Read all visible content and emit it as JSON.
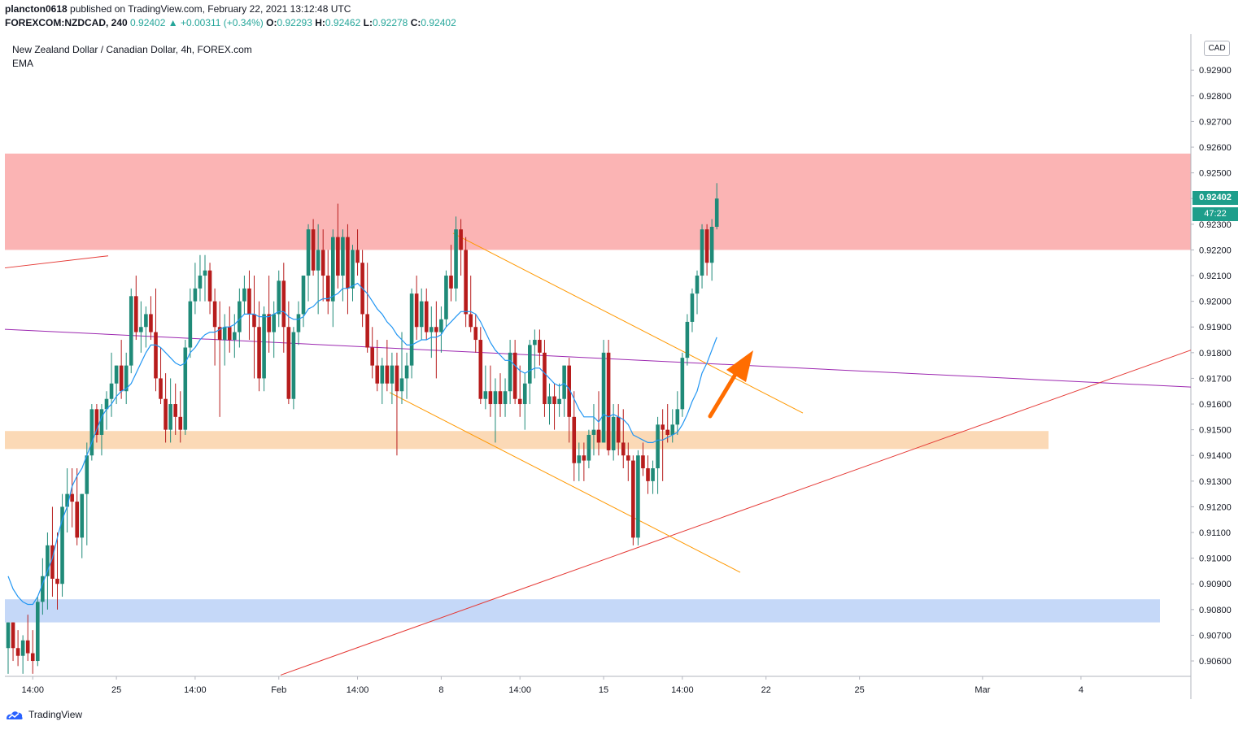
{
  "header": {
    "author": "plancton0618",
    "published_text": "published on TradingView.com, February 22, 2021 13:12:48 UTC",
    "symbol": "FOREXCOM:NZDCAD, 240",
    "change": "0.92402 ▲ +0.00311 (+0.34%)",
    "o_label": "O:",
    "o_value": "0.92293",
    "h_label": "H:",
    "h_value": "0.92462",
    "l_label": "L:",
    "l_value": "0.92278",
    "c_label": "C:",
    "c_value": "0.92402"
  },
  "legend": {
    "title": "New Zealand Dollar / Canadian Dollar, 4h, FOREX.com",
    "indicator": "EMA"
  },
  "currency_button": "CAD",
  "last_price": "0.92402",
  "countdown": "47:22",
  "footer": {
    "brand": "TradingView"
  },
  "colors": {
    "up": "#26a69a",
    "down": "#ef5350",
    "candle_up": "#1f8a78",
    "candle_down": "#b71c1c",
    "ema": "#2196f3",
    "resistance_zone": "#fbb4b4",
    "support_zone": "#fbd9b6",
    "lower_zone": "#c5d8f8",
    "channel": "#ff9800",
    "trend_red": "#e53935",
    "trend_purple": "#9c27b0",
    "arrow": "#ff6d00",
    "price_tag": "#1e9e8b"
  },
  "chart_data": {
    "type": "candlestick",
    "title": "New Zealand Dollar / Canadian Dollar, 4h, FOREX.com",
    "ylim": [
      0.9054,
      0.9304
    ],
    "y_ticks": [
      "0.92900",
      "0.92800",
      "0.92700",
      "0.92600",
      "0.92500",
      "0.92400",
      "0.92300",
      "0.92200",
      "0.92100",
      "0.92000",
      "0.91900",
      "0.91800",
      "0.91700",
      "0.91600",
      "0.91500",
      "0.91400",
      "0.91300",
      "0.91200",
      "0.91100",
      "0.91000",
      "0.90900",
      "0.90800",
      "0.90700",
      "0.90600"
    ],
    "x_ticks": [
      {
        "label": "14:00",
        "i": 5
      },
      {
        "label": "25",
        "i": 22
      },
      {
        "label": "14:00",
        "i": 38
      },
      {
        "label": "Feb",
        "i": 55
      },
      {
        "label": "14:00",
        "i": 71
      },
      {
        "label": "8",
        "i": 88
      },
      {
        "label": "14:00",
        "i": 104
      },
      {
        "label": "15",
        "i": 121
      },
      {
        "label": "14:00",
        "i": 137
      },
      {
        "label": "22",
        "i": 154
      },
      {
        "label": "25",
        "i": 173
      },
      {
        "label": "Mar",
        "i": 198
      },
      {
        "label": "4",
        "i": 218
      }
    ],
    "candles": [
      [
        0.9065,
        0.9075,
        0.9055,
        0.9075
      ],
      [
        0.9075,
        0.9075,
        0.906,
        0.9065
      ],
      [
        0.9065,
        0.9072,
        0.9058,
        0.9062
      ],
      [
        0.9062,
        0.907,
        0.9055,
        0.9068
      ],
      [
        0.9068,
        0.9078,
        0.906,
        0.9063
      ],
      [
        0.9063,
        0.9072,
        0.9055,
        0.906
      ],
      [
        0.906,
        0.9085,
        0.9058,
        0.9083
      ],
      [
        0.9083,
        0.91,
        0.9078,
        0.9093
      ],
      [
        0.9093,
        0.911,
        0.908,
        0.9105
      ],
      [
        0.9105,
        0.912,
        0.9085,
        0.9092
      ],
      [
        0.9092,
        0.911,
        0.908,
        0.909
      ],
      [
        0.909,
        0.9125,
        0.9085,
        0.912
      ],
      [
        0.912,
        0.9135,
        0.911,
        0.9125
      ],
      [
        0.9125,
        0.9135,
        0.9112,
        0.9122
      ],
      [
        0.9122,
        0.9135,
        0.9105,
        0.9108
      ],
      [
        0.9108,
        0.9125,
        0.91,
        0.9125
      ],
      [
        0.9125,
        0.9145,
        0.9105,
        0.914
      ],
      [
        0.914,
        0.916,
        0.9138,
        0.9158
      ],
      [
        0.9158,
        0.916,
        0.9145,
        0.9148
      ],
      [
        0.9148,
        0.916,
        0.914,
        0.9158
      ],
      [
        0.9158,
        0.9165,
        0.915,
        0.9162
      ],
      [
        0.9162,
        0.918,
        0.9155,
        0.9168
      ],
      [
        0.9168,
        0.9175,
        0.916,
        0.9175
      ],
      [
        0.9175,
        0.9185,
        0.9162,
        0.9165
      ],
      [
        0.9165,
        0.918,
        0.916,
        0.9175
      ],
      [
        0.9175,
        0.9205,
        0.9172,
        0.9202
      ],
      [
        0.9202,
        0.921,
        0.9185,
        0.9188
      ],
      [
        0.9188,
        0.92,
        0.918,
        0.919
      ],
      [
        0.919,
        0.9198,
        0.9182,
        0.9195
      ],
      [
        0.9195,
        0.9202,
        0.9185,
        0.9188
      ],
      [
        0.9188,
        0.9205,
        0.9165,
        0.917
      ],
      [
        0.917,
        0.9182,
        0.916,
        0.9162
      ],
      [
        0.9162,
        0.9172,
        0.9145,
        0.915
      ],
      [
        0.915,
        0.917,
        0.9145,
        0.916
      ],
      [
        0.916,
        0.9168,
        0.9148,
        0.9155
      ],
      [
        0.9155,
        0.9165,
        0.9145,
        0.915
      ],
      [
        0.915,
        0.9185,
        0.9148,
        0.9182
      ],
      [
        0.9182,
        0.9205,
        0.9178,
        0.92
      ],
      [
        0.92,
        0.9215,
        0.9195,
        0.9205
      ],
      [
        0.9205,
        0.9218,
        0.92,
        0.921
      ],
      [
        0.921,
        0.9218,
        0.92,
        0.9212
      ],
      [
        0.9212,
        0.9215,
        0.9195,
        0.92
      ],
      [
        0.92,
        0.9205,
        0.9175,
        0.919
      ],
      [
        0.919,
        0.92,
        0.9155,
        0.9185
      ],
      [
        0.9185,
        0.9195,
        0.9175,
        0.919
      ],
      [
        0.919,
        0.9198,
        0.918,
        0.9185
      ],
      [
        0.9185,
        0.9195,
        0.9178,
        0.9188
      ],
      [
        0.9188,
        0.9205,
        0.9182,
        0.92
      ],
      [
        0.92,
        0.921,
        0.9195,
        0.9205
      ],
      [
        0.9205,
        0.9212,
        0.9185,
        0.9195
      ],
      [
        0.9195,
        0.921,
        0.917,
        0.919
      ],
      [
        0.919,
        0.92,
        0.9165,
        0.917
      ],
      [
        0.917,
        0.9198,
        0.9165,
        0.9195
      ],
      [
        0.9195,
        0.921,
        0.918,
        0.9188
      ],
      [
        0.9188,
        0.92,
        0.9178,
        0.9195
      ],
      [
        0.9195,
        0.9212,
        0.919,
        0.9208
      ],
      [
        0.9208,
        0.9215,
        0.918,
        0.919
      ],
      [
        0.919,
        0.92,
        0.916,
        0.9162
      ],
      [
        0.9162,
        0.919,
        0.9158,
        0.9188
      ],
      [
        0.9188,
        0.92,
        0.9183,
        0.9195
      ],
      [
        0.9195,
        0.921,
        0.919,
        0.921
      ],
      [
        0.921,
        0.923,
        0.92,
        0.9228
      ],
      [
        0.9228,
        0.9232,
        0.921,
        0.9212
      ],
      [
        0.9212,
        0.923,
        0.9195,
        0.922
      ],
      [
        0.922,
        0.9228,
        0.92,
        0.921
      ],
      [
        0.921,
        0.922,
        0.9195,
        0.92
      ],
      [
        0.92,
        0.9228,
        0.919,
        0.9225
      ],
      [
        0.9225,
        0.9238,
        0.9205,
        0.921
      ],
      [
        0.921,
        0.9228,
        0.92,
        0.9225
      ],
      [
        0.9225,
        0.923,
        0.9195,
        0.9205
      ],
      [
        0.9205,
        0.9222,
        0.92,
        0.922
      ],
      [
        0.922,
        0.9228,
        0.921,
        0.9215
      ],
      [
        0.9215,
        0.922,
        0.919,
        0.9195
      ],
      [
        0.9195,
        0.9215,
        0.918,
        0.9182
      ],
      [
        0.9182,
        0.919,
        0.917,
        0.9175
      ],
      [
        0.9175,
        0.9185,
        0.9165,
        0.9168
      ],
      [
        0.9168,
        0.9178,
        0.916,
        0.9175
      ],
      [
        0.9175,
        0.9185,
        0.9165,
        0.9168
      ],
      [
        0.9168,
        0.918,
        0.916,
        0.9175
      ],
      [
        0.9175,
        0.918,
        0.914,
        0.9165
      ],
      [
        0.9165,
        0.9188,
        0.916,
        0.917
      ],
      [
        0.917,
        0.918,
        0.9162,
        0.9175
      ],
      [
        0.9175,
        0.9205,
        0.917,
        0.9203
      ],
      [
        0.9203,
        0.921,
        0.9185,
        0.919
      ],
      [
        0.919,
        0.9205,
        0.9185,
        0.92
      ],
      [
        0.92,
        0.9205,
        0.9185,
        0.9188
      ],
      [
        0.9188,
        0.9198,
        0.9178,
        0.919
      ],
      [
        0.919,
        0.92,
        0.917,
        0.9188
      ],
      [
        0.9188,
        0.9198,
        0.918,
        0.9193
      ],
      [
        0.9193,
        0.9212,
        0.919,
        0.921
      ],
      [
        0.921,
        0.9222,
        0.92,
        0.9205
      ],
      [
        0.9205,
        0.9233,
        0.92,
        0.9228
      ],
      [
        0.9228,
        0.9232,
        0.921,
        0.922
      ],
      [
        0.922,
        0.9225,
        0.919,
        0.9195
      ],
      [
        0.9195,
        0.921,
        0.9188,
        0.919
      ],
      [
        0.919,
        0.9195,
        0.918,
        0.9185
      ],
      [
        0.9185,
        0.919,
        0.916,
        0.9162
      ],
      [
        0.9162,
        0.9175,
        0.9158,
        0.9165
      ],
      [
        0.9165,
        0.9175,
        0.9155,
        0.916
      ],
      [
        0.916,
        0.917,
        0.9145,
        0.9165
      ],
      [
        0.9165,
        0.9172,
        0.9155,
        0.916
      ],
      [
        0.916,
        0.917,
        0.9155,
        0.9165
      ],
      [
        0.9165,
        0.9185,
        0.916,
        0.918
      ],
      [
        0.918,
        0.9185,
        0.916,
        0.9162
      ],
      [
        0.9162,
        0.9175,
        0.9155,
        0.916
      ],
      [
        0.916,
        0.9172,
        0.915,
        0.9168
      ],
      [
        0.9168,
        0.9185,
        0.916,
        0.9183
      ],
      [
        0.9183,
        0.9189,
        0.917,
        0.9185
      ],
      [
        0.9185,
        0.9189,
        0.9175,
        0.918
      ],
      [
        0.918,
        0.9185,
        0.9155,
        0.916
      ],
      [
        0.916,
        0.9168,
        0.9152,
        0.9163
      ],
      [
        0.9163,
        0.9168,
        0.915,
        0.916
      ],
      [
        0.916,
        0.9168,
        0.9155,
        0.9162
      ],
      [
        0.9162,
        0.9175,
        0.9155,
        0.9175
      ],
      [
        0.9175,
        0.9178,
        0.9145,
        0.9155
      ],
      [
        0.9155,
        0.9165,
        0.913,
        0.9137
      ],
      [
        0.9137,
        0.9145,
        0.913,
        0.914
      ],
      [
        0.914,
        0.9145,
        0.913,
        0.9138
      ],
      [
        0.9138,
        0.915,
        0.9135,
        0.9148
      ],
      [
        0.9148,
        0.916,
        0.914,
        0.915
      ],
      [
        0.915,
        0.9165,
        0.914,
        0.9145
      ],
      [
        0.9145,
        0.9185,
        0.9145,
        0.918
      ],
      [
        0.918,
        0.9185,
        0.914,
        0.9142
      ],
      [
        0.9142,
        0.916,
        0.9138,
        0.9155
      ],
      [
        0.9155,
        0.916,
        0.914,
        0.9145
      ],
      [
        0.9145,
        0.9158,
        0.9135,
        0.914
      ],
      [
        0.914,
        0.9145,
        0.913,
        0.9138
      ],
      [
        0.9138,
        0.914,
        0.9105,
        0.9108
      ],
      [
        0.9108,
        0.9142,
        0.9105,
        0.914
      ],
      [
        0.914,
        0.9145,
        0.9132,
        0.9135
      ],
      [
        0.9135,
        0.914,
        0.9125,
        0.913
      ],
      [
        0.913,
        0.9138,
        0.9125,
        0.9135
      ],
      [
        0.9135,
        0.9155,
        0.9125,
        0.9152
      ],
      [
        0.9152,
        0.9158,
        0.913,
        0.915
      ],
      [
        0.915,
        0.916,
        0.9145,
        0.9148
      ],
      [
        0.9148,
        0.9158,
        0.9145,
        0.9152
      ],
      [
        0.9152,
        0.9165,
        0.9148,
        0.9158
      ],
      [
        0.9158,
        0.918,
        0.9155,
        0.9178
      ],
      [
        0.9178,
        0.9195,
        0.9175,
        0.9192
      ],
      [
        0.9192,
        0.9205,
        0.9188,
        0.9203
      ],
      [
        0.9203,
        0.9212,
        0.9195,
        0.921
      ],
      [
        0.921,
        0.923,
        0.9205,
        0.9228
      ],
      [
        0.9228,
        0.923,
        0.921,
        0.9215
      ],
      [
        0.9215,
        0.9232,
        0.9208,
        0.9229
      ],
      [
        0.9229,
        0.9246,
        0.9228,
        0.924
      ]
    ],
    "ema": [
      0.9093,
      0.9088,
      0.9085,
      0.9083,
      0.9082,
      0.9082,
      0.9085,
      0.909,
      0.9095,
      0.91,
      0.9108,
      0.9115,
      0.912,
      0.9128,
      0.9132,
      0.9135,
      0.914,
      0.9145,
      0.915,
      0.9155,
      0.9158,
      0.916,
      0.9163,
      0.9165,
      0.9166,
      0.9168,
      0.9172,
      0.9176,
      0.918,
      0.9183,
      0.9183,
      0.9182,
      0.918,
      0.9178,
      0.9176,
      0.9175,
      0.9176,
      0.918,
      0.9182,
      0.9185,
      0.9187,
      0.9188,
      0.9188,
      0.9189,
      0.919,
      0.919,
      0.9191,
      0.9193,
      0.9195,
      0.9195,
      0.9195,
      0.9194,
      0.9194,
      0.9194,
      0.9195,
      0.9196,
      0.9196,
      0.9194,
      0.9193,
      0.9193,
      0.9194,
      0.9197,
      0.9198,
      0.92,
      0.9201,
      0.9201,
      0.9202,
      0.9203,
      0.9205,
      0.9205,
      0.9206,
      0.9207,
      0.9205,
      0.9203,
      0.92,
      0.9197,
      0.9195,
      0.9192,
      0.919,
      0.9187,
      0.9185,
      0.9183,
      0.9183,
      0.9184,
      0.9185,
      0.9185,
      0.9186,
      0.9186,
      0.9187,
      0.919,
      0.9192,
      0.9194,
      0.9196,
      0.9196,
      0.9196,
      0.9195,
      0.9192,
      0.9188,
      0.9184,
      0.9181,
      0.9179,
      0.9177,
      0.9177,
      0.9175,
      0.9173,
      0.9172,
      0.9173,
      0.9174,
      0.9174,
      0.9172,
      0.917,
      0.9168,
      0.9167,
      0.9168,
      0.9166,
      0.9162,
      0.9158,
      0.9155,
      0.9155,
      0.9155,
      0.9153,
      0.9156,
      0.9155,
      0.9156,
      0.9155,
      0.9154,
      0.9152,
      0.9148,
      0.9147,
      0.9146,
      0.9145,
      0.9145,
      0.9146,
      0.9146,
      0.9147,
      0.9148,
      0.9149,
      0.9152,
      0.9156,
      0.9161,
      0.9165,
      0.9172,
      0.9176,
      0.9181,
      0.9186
    ]
  }
}
